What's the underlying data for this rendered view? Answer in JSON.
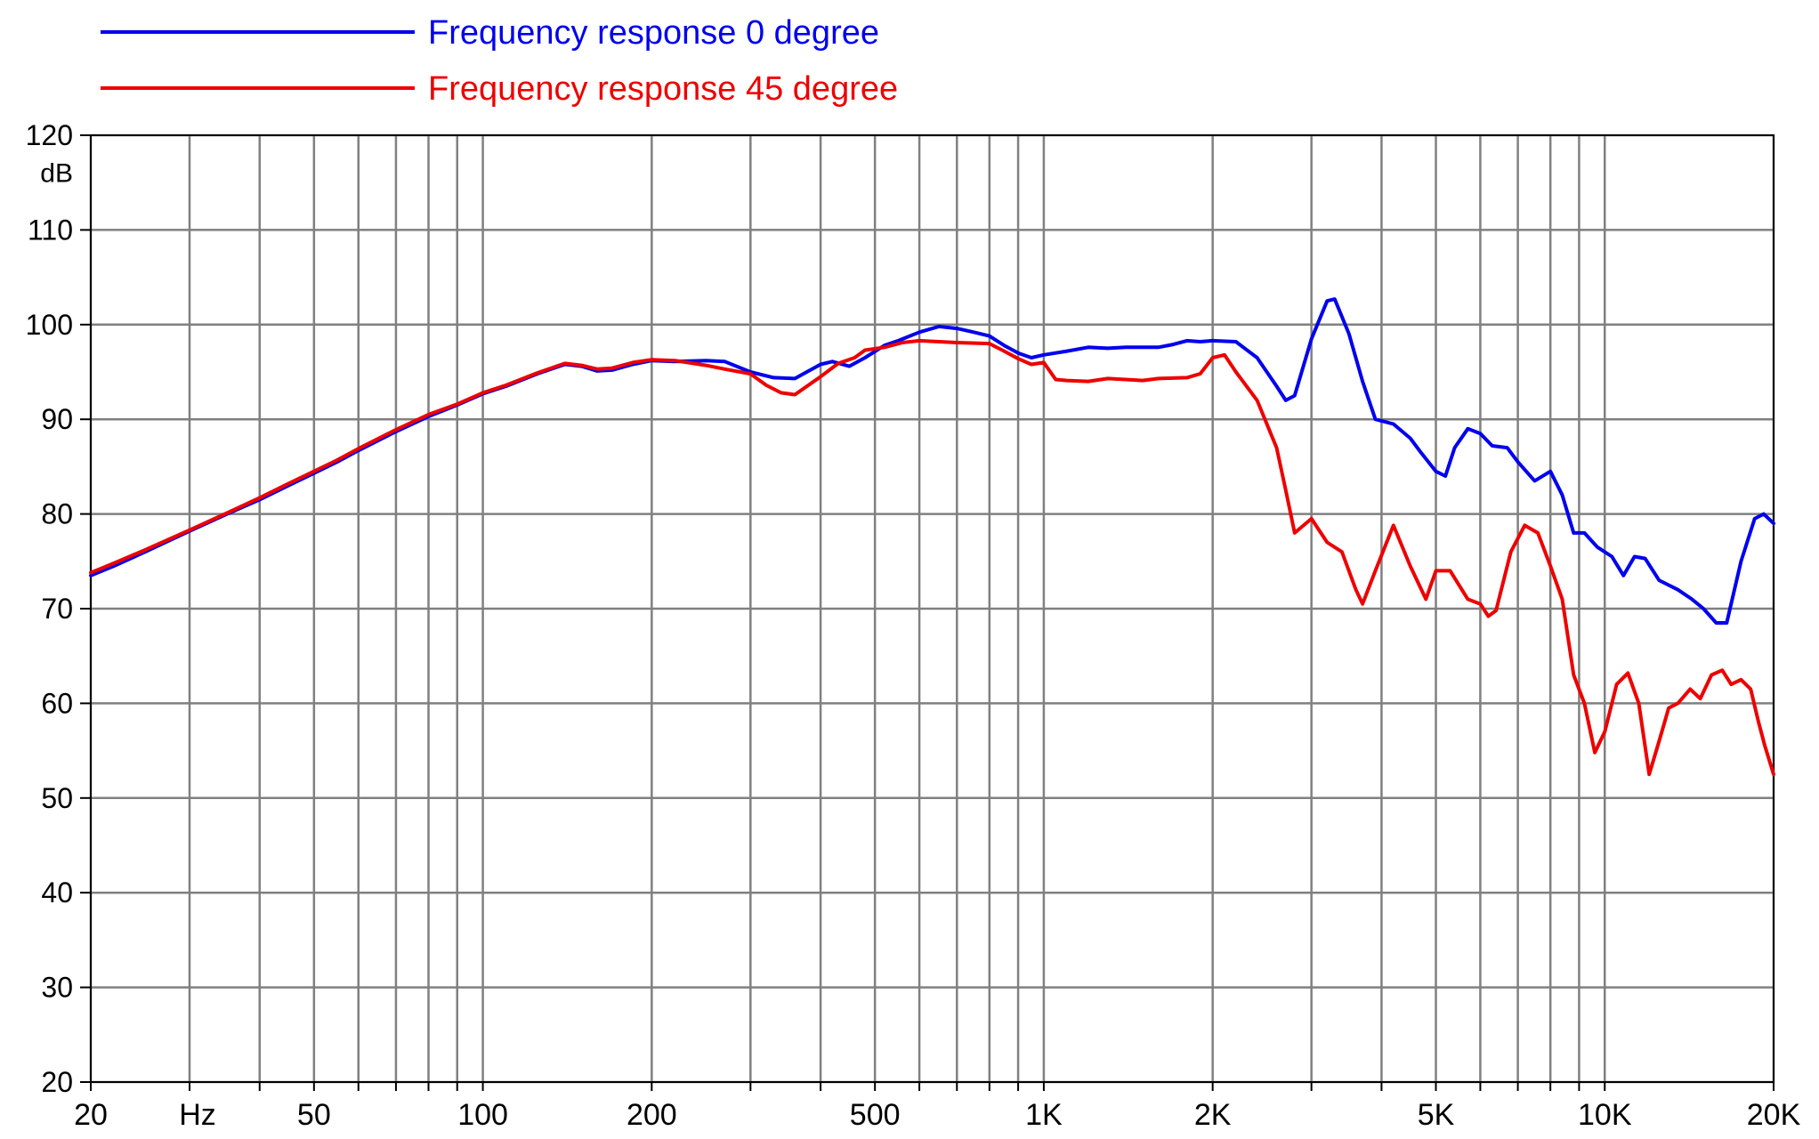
{
  "chart_data": {
    "type": "line",
    "xscale": "log",
    "xlim": [
      20,
      20000
    ],
    "ylim": [
      20,
      120
    ],
    "grid": true,
    "legend_position": "top-left",
    "ylabel": "dB",
    "xlabel": "Hz",
    "y_ticks": [
      "120",
      "110",
      "100",
      "90",
      "80",
      "70",
      "60",
      "50",
      "40",
      "30",
      "20"
    ],
    "y_tick_values": [
      120,
      110,
      100,
      90,
      80,
      70,
      60,
      50,
      40,
      30,
      20
    ],
    "x_ticks": [
      "20",
      "50",
      "100",
      "200",
      "500",
      "1K",
      "2K",
      "5K",
      "10K",
      "20K"
    ],
    "x_tick_values": [
      20,
      50,
      100,
      200,
      500,
      1000,
      2000,
      5000,
      10000,
      20000
    ],
    "x_grid_values": [
      20,
      30,
      40,
      50,
      60,
      70,
      80,
      90,
      100,
      200,
      300,
      400,
      500,
      600,
      700,
      800,
      900,
      1000,
      2000,
      3000,
      4000,
      5000,
      6000,
      7000,
      8000,
      9000,
      10000,
      20000
    ],
    "series": [
      {
        "name": "Frequency response 0 degree",
        "color": "#0000ee",
        "points": [
          [
            20,
            73.5
          ],
          [
            22,
            74.5
          ],
          [
            25,
            76
          ],
          [
            30,
            78.2
          ],
          [
            35,
            80
          ],
          [
            40,
            81.5
          ],
          [
            45,
            83
          ],
          [
            50,
            84.3
          ],
          [
            55,
            85.5
          ],
          [
            60,
            86.7
          ],
          [
            70,
            88.7
          ],
          [
            80,
            90.3
          ],
          [
            90,
            91.5
          ],
          [
            100,
            92.7
          ],
          [
            110,
            93.5
          ],
          [
            125,
            94.8
          ],
          [
            140,
            95.8
          ],
          [
            150,
            95.6
          ],
          [
            160,
            95.1
          ],
          [
            170,
            95.2
          ],
          [
            185,
            95.8
          ],
          [
            200,
            96.2
          ],
          [
            220,
            96.1
          ],
          [
            250,
            96.2
          ],
          [
            270,
            96.1
          ],
          [
            300,
            95
          ],
          [
            330,
            94.4
          ],
          [
            360,
            94.3
          ],
          [
            400,
            95.8
          ],
          [
            420,
            96.1
          ],
          [
            450,
            95.6
          ],
          [
            480,
            96.5
          ],
          [
            520,
            97.8
          ],
          [
            550,
            98.3
          ],
          [
            600,
            99.2
          ],
          [
            650,
            99.8
          ],
          [
            700,
            99.6
          ],
          [
            750,
            99.2
          ],
          [
            800,
            98.8
          ],
          [
            850,
            97.8
          ],
          [
            900,
            97
          ],
          [
            950,
            96.5
          ],
          [
            1000,
            96.8
          ],
          [
            1100,
            97.2
          ],
          [
            1200,
            97.6
          ],
          [
            1300,
            97.5
          ],
          [
            1400,
            97.6
          ],
          [
            1500,
            97.6
          ],
          [
            1600,
            97.6
          ],
          [
            1700,
            97.9
          ],
          [
            1800,
            98.3
          ],
          [
            1900,
            98.2
          ],
          [
            2000,
            98.3
          ],
          [
            2200,
            98.2
          ],
          [
            2400,
            96.5
          ],
          [
            2600,
            93.5
          ],
          [
            2700,
            92
          ],
          [
            2800,
            92.5
          ],
          [
            3000,
            98.5
          ],
          [
            3200,
            102.5
          ],
          [
            3300,
            102.7
          ],
          [
            3500,
            99
          ],
          [
            3700,
            94
          ],
          [
            3900,
            90
          ],
          [
            4200,
            89.5
          ],
          [
            4500,
            88
          ],
          [
            4700,
            86.5
          ],
          [
            5000,
            84.5
          ],
          [
            5200,
            84
          ],
          [
            5400,
            87
          ],
          [
            5700,
            89
          ],
          [
            6000,
            88.5
          ],
          [
            6300,
            87.2
          ],
          [
            6700,
            87
          ],
          [
            7000,
            85.5
          ],
          [
            7500,
            83.5
          ],
          [
            8000,
            84.5
          ],
          [
            8400,
            82
          ],
          [
            8800,
            78
          ],
          [
            9200,
            78
          ],
          [
            9700,
            76.5
          ],
          [
            10300,
            75.5
          ],
          [
            10800,
            73.5
          ],
          [
            11300,
            75.5
          ],
          [
            11800,
            75.3
          ],
          [
            12500,
            73
          ],
          [
            13500,
            72
          ],
          [
            14300,
            71
          ],
          [
            15000,
            70
          ],
          [
            15800,
            68.5
          ],
          [
            16500,
            68.5
          ],
          [
            17500,
            75
          ],
          [
            18500,
            79.5
          ],
          [
            19200,
            80
          ],
          [
            20000,
            79
          ]
        ]
      },
      {
        "name": "Frequency response 45 degree",
        "color": "#ee0000",
        "points": [
          [
            20,
            73.8
          ],
          [
            22,
            74.8
          ],
          [
            25,
            76.2
          ],
          [
            30,
            78.3
          ],
          [
            35,
            80.1
          ],
          [
            40,
            81.7
          ],
          [
            45,
            83.2
          ],
          [
            50,
            84.5
          ],
          [
            55,
            85.7
          ],
          [
            60,
            86.9
          ],
          [
            70,
            88.9
          ],
          [
            80,
            90.5
          ],
          [
            90,
            91.6
          ],
          [
            100,
            92.8
          ],
          [
            110,
            93.6
          ],
          [
            125,
            94.9
          ],
          [
            140,
            95.9
          ],
          [
            150,
            95.7
          ],
          [
            160,
            95.3
          ],
          [
            170,
            95.4
          ],
          [
            185,
            96
          ],
          [
            200,
            96.3
          ],
          [
            220,
            96.2
          ],
          [
            250,
            95.7
          ],
          [
            270,
            95.3
          ],
          [
            300,
            94.8
          ],
          [
            320,
            93.6
          ],
          [
            340,
            92.8
          ],
          [
            360,
            92.6
          ],
          [
            400,
            94.5
          ],
          [
            430,
            95.9
          ],
          [
            460,
            96.5
          ],
          [
            480,
            97.3
          ],
          [
            520,
            97.6
          ],
          [
            560,
            98.1
          ],
          [
            600,
            98.3
          ],
          [
            700,
            98.1
          ],
          [
            800,
            98
          ],
          [
            850,
            97.2
          ],
          [
            900,
            96.4
          ],
          [
            950,
            95.8
          ],
          [
            1000,
            96
          ],
          [
            1050,
            94.2
          ],
          [
            1100,
            94.1
          ],
          [
            1200,
            94
          ],
          [
            1300,
            94.3
          ],
          [
            1400,
            94.2
          ],
          [
            1500,
            94.1
          ],
          [
            1600,
            94.3
          ],
          [
            1800,
            94.4
          ],
          [
            1900,
            94.8
          ],
          [
            2000,
            96.5
          ],
          [
            2100,
            96.8
          ],
          [
            2200,
            95
          ],
          [
            2400,
            92
          ],
          [
            2600,
            87
          ],
          [
            2700,
            82.5
          ],
          [
            2800,
            78
          ],
          [
            3000,
            79.5
          ],
          [
            3200,
            77
          ],
          [
            3400,
            76
          ],
          [
            3600,
            72
          ],
          [
            3700,
            70.5
          ],
          [
            3900,
            74
          ],
          [
            4200,
            78.8
          ],
          [
            4500,
            74.5
          ],
          [
            4800,
            71
          ],
          [
            5000,
            74
          ],
          [
            5300,
            74
          ],
          [
            5700,
            71
          ],
          [
            6000,
            70.5
          ],
          [
            6200,
            69.2
          ],
          [
            6400,
            69.8
          ],
          [
            6800,
            76
          ],
          [
            7200,
            78.8
          ],
          [
            7600,
            78
          ],
          [
            8000,
            74.5
          ],
          [
            8400,
            71
          ],
          [
            8800,
            63
          ],
          [
            9200,
            60
          ],
          [
            9600,
            54.8
          ],
          [
            10000,
            57
          ],
          [
            10500,
            62
          ],
          [
            11000,
            63.2
          ],
          [
            11500,
            60
          ],
          [
            12000,
            52.5
          ],
          [
            12500,
            56
          ],
          [
            13000,
            59.5
          ],
          [
            13500,
            60
          ],
          [
            14200,
            61.5
          ],
          [
            14800,
            60.5
          ],
          [
            15500,
            63
          ],
          [
            16200,
            63.5
          ],
          [
            16800,
            62
          ],
          [
            17500,
            62.5
          ],
          [
            18200,
            61.5
          ],
          [
            18800,
            58
          ],
          [
            19300,
            55.5
          ],
          [
            20000,
            52.5
          ]
        ]
      }
    ]
  }
}
